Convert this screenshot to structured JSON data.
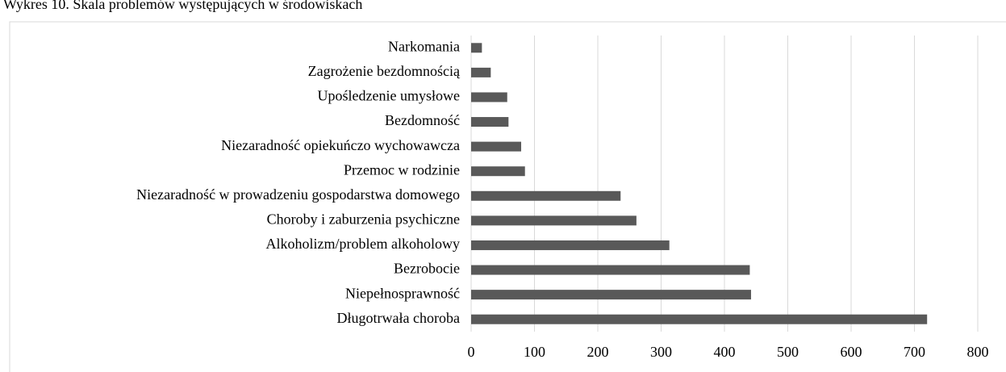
{
  "chart_data": {
    "type": "bar",
    "orientation": "horizontal",
    "title": "Wykres 10. Skala problemów występujących w środowiskach",
    "categories": [
      "Narkomania",
      "Zagrożenie bezdomnością",
      "Upośledzenie umysłowe",
      "Bezdomność",
      "Niezaradność opiekuńczo wychowawcza",
      "Przemoc w rodzinie",
      "Niezaradność w prowadzeniu gospodarstwa domowego",
      "Choroby i zaburzenia psychiczne",
      "Alkoholizm/problem alkoholowy",
      "Bezrobocie",
      "Niepełnosprawność",
      "Długotrwała choroba"
    ],
    "values": [
      17,
      31,
      57,
      59,
      79,
      85,
      236,
      261,
      313,
      440,
      442,
      720
    ],
    "color": "#595959",
    "xlim": [
      0,
      800
    ],
    "xticks": [
      0,
      100,
      200,
      300,
      400,
      500,
      600,
      700,
      800
    ],
    "grid": true
  }
}
